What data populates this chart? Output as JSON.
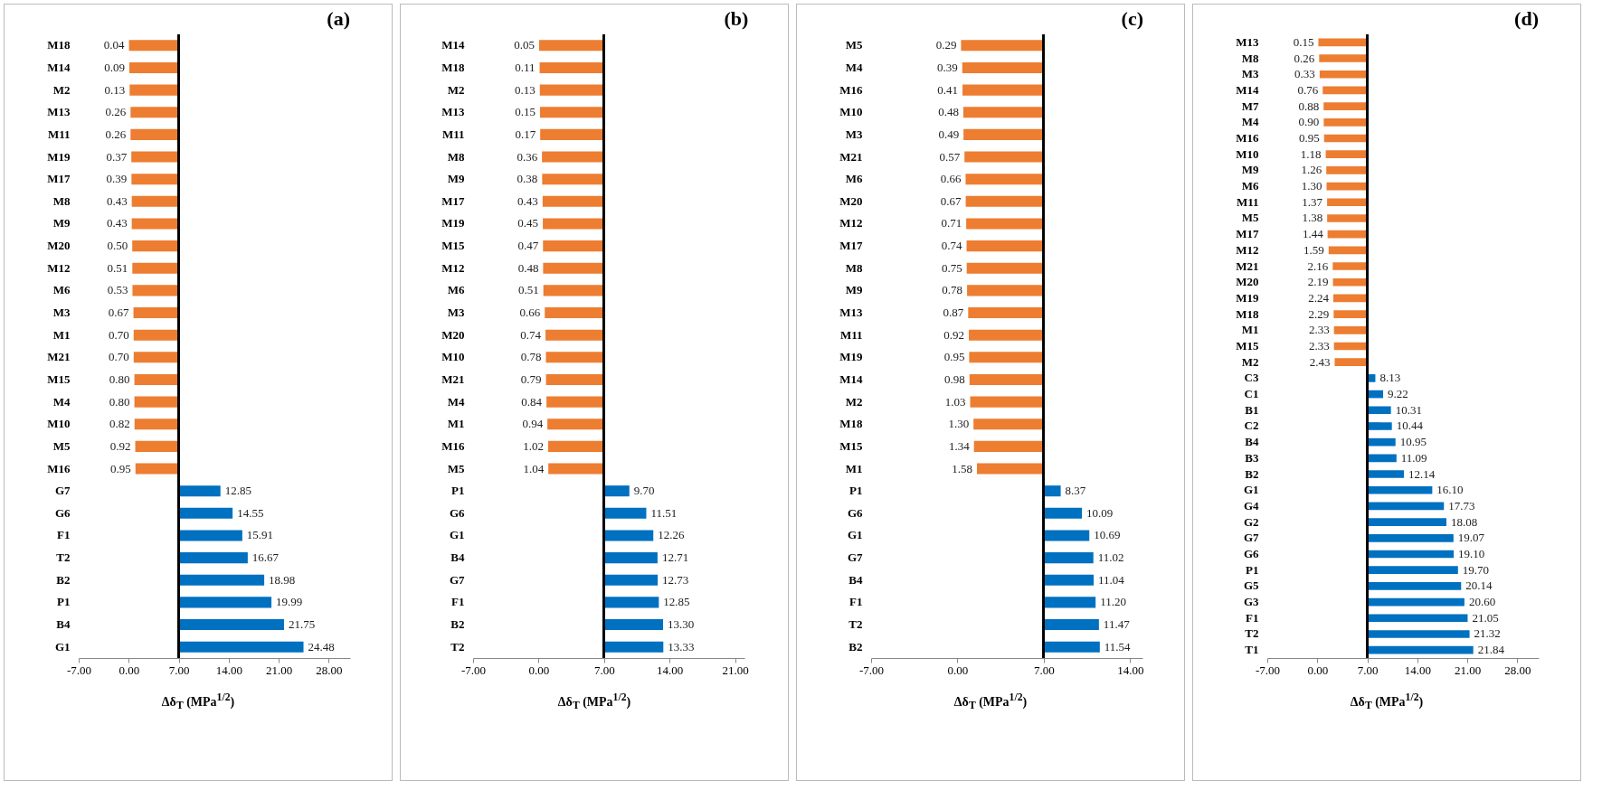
{
  "chart_data": [
    {
      "type": "bar",
      "orientation": "horizontal",
      "title": "(a)",
      "xlabel": "Δδ$_{T}$ (MPa$^{1/2}$)",
      "categories": [
        "M18",
        "M14",
        "M2",
        "M13",
        "M11",
        "M19",
        "M17",
        "M8",
        "M9",
        "M20",
        "M12",
        "M6",
        "M3",
        "M1",
        "M21",
        "M15",
        "M4",
        "M10",
        "M5",
        "M16",
        "G7",
        "G6",
        "F1",
        "T2",
        "B2",
        "P1",
        "B4",
        "G1"
      ],
      "base": [
        7,
        7,
        7,
        7,
        7,
        7,
        7,
        7,
        7,
        7,
        7,
        7,
        7,
        7,
        7,
        7,
        7,
        7,
        7,
        7,
        7,
        7,
        7,
        7,
        7,
        7,
        7,
        7
      ],
      "values": [
        -6.96,
        -6.91,
        -6.87,
        -6.74,
        -6.74,
        -6.63,
        -6.61,
        -6.57,
        -6.57,
        -6.5,
        -6.49,
        -6.47,
        -6.33,
        -6.3,
        -6.3,
        -6.2,
        -6.2,
        -6.18,
        -6.08,
        -6.05,
        5.85,
        7.55,
        8.91,
        9.67,
        11.98,
        12.99,
        14.75,
        17.48
      ],
      "value_labels": [
        "0.04",
        "0.09",
        "0.13",
        "0.26",
        "0.26",
        "0.37",
        "0.39",
        "0.43",
        "0.43",
        "0.50",
        "0.51",
        "0.53",
        "0.67",
        "0.70",
        "0.70",
        "0.80",
        "0.80",
        "0.82",
        "0.92",
        "0.95",
        "12.85",
        "14.55",
        "15.91",
        "16.67",
        "18.98",
        "19.99",
        "21.75",
        "24.48"
      ],
      "colors": [
        "#ed7d31",
        "#ed7d31",
        "#ed7d31",
        "#ed7d31",
        "#ed7d31",
        "#ed7d31",
        "#ed7d31",
        "#ed7d31",
        "#ed7d31",
        "#ed7d31",
        "#ed7d31",
        "#ed7d31",
        "#ed7d31",
        "#ed7d31",
        "#ed7d31",
        "#ed7d31",
        "#ed7d31",
        "#ed7d31",
        "#ed7d31",
        "#ed7d31",
        "#0070c0",
        "#0070c0",
        "#0070c0",
        "#0070c0",
        "#0070c0",
        "#0070c0",
        "#0070c0",
        "#0070c0"
      ],
      "xlim": [
        -7,
        31
      ],
      "xticks": [
        {
          "value": -7,
          "label": "-7.00"
        },
        {
          "value": 0,
          "label": "0.00"
        },
        {
          "value": 7,
          "label": "7.00"
        },
        {
          "value": 14,
          "label": "14.00"
        },
        {
          "value": 21,
          "label": "21.00"
        },
        {
          "value": 28,
          "label": "28.00"
        }
      ]
    },
    {
      "type": "bar",
      "orientation": "horizontal",
      "title": "(b)",
      "xlabel": "Δδ$_{T}$ (MPa$^{1/2}$)",
      "categories": [
        "M14",
        "M18",
        "M2",
        "M13",
        "M11",
        "M8",
        "M9",
        "M17",
        "M19",
        "M15",
        "M12",
        "M6",
        "M3",
        "M20",
        "M10",
        "M21",
        "M4",
        "M1",
        "M16",
        "M5",
        "P1",
        "G6",
        "G1",
        "B4",
        "G7",
        "F1",
        "B2",
        "T2"
      ],
      "base": [
        7,
        7,
        7,
        7,
        7,
        7,
        7,
        7,
        7,
        7,
        7,
        7,
        7,
        7,
        7,
        7,
        7,
        7,
        7,
        7,
        7,
        7,
        7,
        7,
        7,
        7,
        7,
        7
      ],
      "values": [
        -6.95,
        -6.89,
        -6.87,
        -6.85,
        -6.83,
        -6.64,
        -6.62,
        -6.57,
        -6.55,
        -6.53,
        -6.52,
        -6.49,
        -6.34,
        -6.26,
        -6.22,
        -6.21,
        -6.16,
        -6.06,
        -5.98,
        -5.96,
        2.7,
        4.51,
        5.26,
        5.71,
        5.73,
        5.85,
        6.3,
        6.33
      ],
      "value_labels": [
        "0.05",
        "0.11",
        "0.13",
        "0.15",
        "0.17",
        "0.36",
        "0.38",
        "0.43",
        "0.45",
        "0.47",
        "0.48",
        "0.51",
        "0.66",
        "0.74",
        "0.78",
        "0.79",
        "0.84",
        "0.94",
        "1.02",
        "1.04",
        "9.70",
        "11.51",
        "12.26",
        "12.71",
        "12.73",
        "12.85",
        "13.30",
        "13.33"
      ],
      "colors": [
        "#ed7d31",
        "#ed7d31",
        "#ed7d31",
        "#ed7d31",
        "#ed7d31",
        "#ed7d31",
        "#ed7d31",
        "#ed7d31",
        "#ed7d31",
        "#ed7d31",
        "#ed7d31",
        "#ed7d31",
        "#ed7d31",
        "#ed7d31",
        "#ed7d31",
        "#ed7d31",
        "#ed7d31",
        "#ed7d31",
        "#ed7d31",
        "#ed7d31",
        "#0070c0",
        "#0070c0",
        "#0070c0",
        "#0070c0",
        "#0070c0",
        "#0070c0",
        "#0070c0",
        "#0070c0"
      ],
      "xlim": [
        -7,
        22
      ],
      "xticks": [
        {
          "value": -7,
          "label": "-7.00"
        },
        {
          "value": 0,
          "label": "0.00"
        },
        {
          "value": 7,
          "label": "7.00"
        },
        {
          "value": 14,
          "label": "14.00"
        },
        {
          "value": 21,
          "label": "21.00"
        }
      ]
    },
    {
      "type": "bar",
      "orientation": "horizontal",
      "title": "(c)",
      "xlabel": "Δδ$_{T}$ (MPa$^{1/2}$)",
      "categories": [
        "M5",
        "M4",
        "M16",
        "M10",
        "M3",
        "M21",
        "M6",
        "M20",
        "M12",
        "M17",
        "M8",
        "M9",
        "M13",
        "M11",
        "M19",
        "M14",
        "M2",
        "M18",
        "M15",
        "M1",
        "P1",
        "G6",
        "G1",
        "G7",
        "B4",
        "F1",
        "T2",
        "B2"
      ],
      "base": [
        7,
        7,
        7,
        7,
        7,
        7,
        7,
        7,
        7,
        7,
        7,
        7,
        7,
        7,
        7,
        7,
        7,
        7,
        7,
        7,
        7,
        7,
        7,
        7,
        7,
        7,
        7,
        7
      ],
      "values": [
        -6.71,
        -6.61,
        -6.59,
        -6.52,
        -6.51,
        -6.43,
        -6.34,
        -6.33,
        -6.29,
        -6.26,
        -6.25,
        -6.22,
        -6.13,
        -6.08,
        -6.05,
        -6.02,
        -5.97,
        -5.7,
        -5.66,
        -5.42,
        1.37,
        3.09,
        3.69,
        4.02,
        4.04,
        4.2,
        4.47,
        4.54
      ],
      "value_labels": [
        "0.29",
        "0.39",
        "0.41",
        "0.48",
        "0.49",
        "0.57",
        "0.66",
        "0.67",
        "0.71",
        "0.74",
        "0.75",
        "0.78",
        "0.87",
        "0.92",
        "0.95",
        "0.98",
        "1.03",
        "1.30",
        "1.34",
        "1.58",
        "8.37",
        "10.09",
        "10.69",
        "11.02",
        "11.04",
        "11.20",
        "11.47",
        "11.54"
      ],
      "colors": [
        "#ed7d31",
        "#ed7d31",
        "#ed7d31",
        "#ed7d31",
        "#ed7d31",
        "#ed7d31",
        "#ed7d31",
        "#ed7d31",
        "#ed7d31",
        "#ed7d31",
        "#ed7d31",
        "#ed7d31",
        "#ed7d31",
        "#ed7d31",
        "#ed7d31",
        "#ed7d31",
        "#ed7d31",
        "#ed7d31",
        "#ed7d31",
        "#ed7d31",
        "#0070c0",
        "#0070c0",
        "#0070c0",
        "#0070c0",
        "#0070c0",
        "#0070c0",
        "#0070c0",
        "#0070c0"
      ],
      "xlim": [
        -7,
        15
      ],
      "xticks": [
        {
          "value": -7,
          "label": "-7.00"
        },
        {
          "value": 0,
          "label": "0.00"
        },
        {
          "value": 7,
          "label": "7.00"
        },
        {
          "value": 14,
          "label": "14.00"
        }
      ]
    },
    {
      "type": "bar",
      "orientation": "horizontal",
      "title": "(d)",
      "xlabel": "Δδ$_{T}$ (MPa$^{1/2}$)",
      "categories": [
        "M13",
        "M8",
        "M3",
        "M14",
        "M7",
        "M4",
        "M16",
        "M10",
        "M9",
        "M6",
        "M11",
        "M5",
        "M17",
        "M12",
        "M21",
        "M20",
        "M19",
        "M18",
        "M1",
        "M15",
        "M2",
        "C3",
        "C1",
        "B1",
        "C2",
        "B4",
        "B3",
        "B2",
        "G1",
        "G4",
        "G2",
        "G7",
        "G6",
        "P1",
        "G5",
        "G3",
        "F1",
        "T2",
        "T1"
      ],
      "base": [
        7,
        7,
        7,
        7,
        7,
        7,
        7,
        7,
        7,
        7,
        7,
        7,
        7,
        7,
        7,
        7,
        7,
        7,
        7,
        7,
        7,
        7,
        7,
        7,
        7,
        7,
        7,
        7,
        7,
        7,
        7,
        7,
        7,
        7,
        7,
        7,
        7,
        7,
        7
      ],
      "values": [
        -6.85,
        -6.74,
        -6.67,
        -6.24,
        -6.12,
        -6.1,
        -6.05,
        -5.82,
        -5.74,
        -5.7,
        -5.63,
        -5.62,
        -5.56,
        -5.41,
        -4.84,
        -4.81,
        -4.76,
        -4.71,
        -4.67,
        -4.67,
        -4.57,
        1.13,
        2.22,
        3.31,
        3.44,
        3.95,
        4.09,
        5.14,
        9.1,
        10.73,
        11.08,
        12.07,
        12.1,
        12.7,
        13.14,
        13.6,
        14.05,
        14.32,
        14.84
      ],
      "value_labels": [
        "0.15",
        "0.26",
        "0.33",
        "0.76",
        "0.88",
        "0.90",
        "0.95",
        "1.18",
        "1.26",
        "1.30",
        "1.37",
        "1.38",
        "1.44",
        "1.59",
        "2.16",
        "2.19",
        "2.24",
        "2.29",
        "2.33",
        "2.33",
        "2.43",
        "8.13",
        "9.22",
        "10.31",
        "10.44",
        "10.95",
        "11.09",
        "12.14",
        "16.10",
        "17.73",
        "18.08",
        "19.07",
        "19.10",
        "19.70",
        "20.14",
        "20.60",
        "21.05",
        "21.32",
        "21.84"
      ],
      "colors": [
        "#ed7d31",
        "#ed7d31",
        "#ed7d31",
        "#ed7d31",
        "#ed7d31",
        "#ed7d31",
        "#ed7d31",
        "#ed7d31",
        "#ed7d31",
        "#ed7d31",
        "#ed7d31",
        "#ed7d31",
        "#ed7d31",
        "#ed7d31",
        "#ed7d31",
        "#ed7d31",
        "#ed7d31",
        "#ed7d31",
        "#ed7d31",
        "#ed7d31",
        "#ed7d31",
        "#0070c0",
        "#0070c0",
        "#0070c0",
        "#0070c0",
        "#0070c0",
        "#0070c0",
        "#0070c0",
        "#0070c0",
        "#0070c0",
        "#0070c0",
        "#0070c0",
        "#0070c0",
        "#0070c0",
        "#0070c0",
        "#0070c0",
        "#0070c0",
        "#0070c0",
        "#0070c0"
      ],
      "xlim": [
        -7,
        31
      ],
      "xticks": [
        {
          "value": -7,
          "label": "-7.00"
        },
        {
          "value": 0,
          "label": "0.00"
        },
        {
          "value": 7,
          "label": "7.00"
        },
        {
          "value": 14,
          "label": "14.00"
        },
        {
          "value": 21,
          "label": "21.00"
        },
        {
          "value": 28,
          "label": "28.00"
        }
      ]
    }
  ]
}
